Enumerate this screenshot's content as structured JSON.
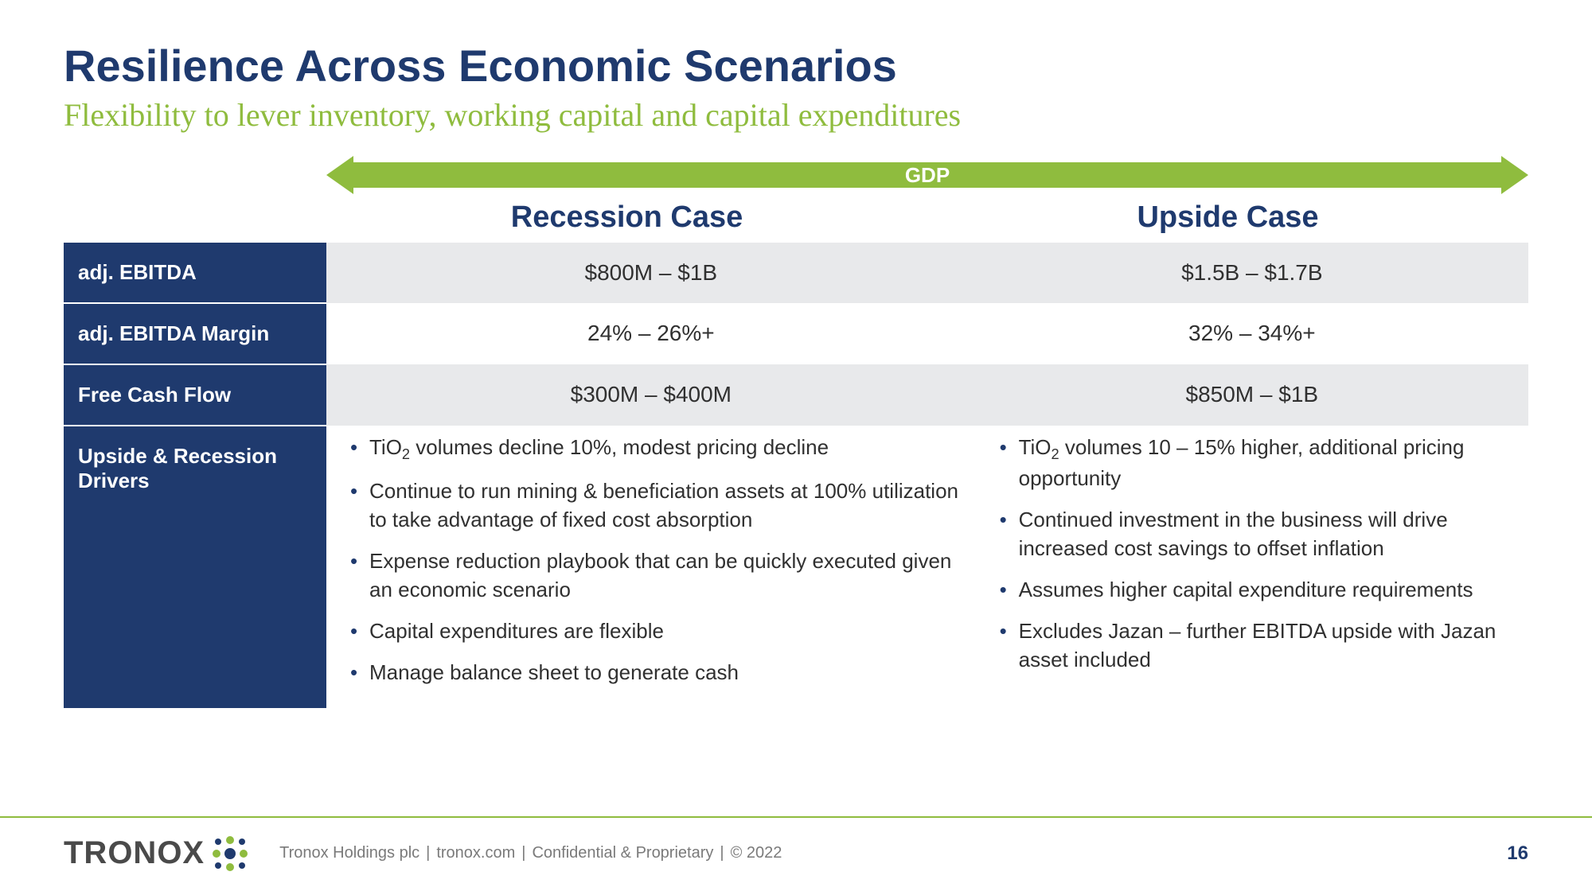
{
  "colors": {
    "title": "#1f3a6e",
    "accent_green": "#8fbc3e",
    "row_header_bg": "#1f3a6e",
    "row_header_text": "#ffffff",
    "shade_bg": "#e8e9eb",
    "body_text": "#303030",
    "footer_text": "#7a7a7a",
    "logo_text": "#4a4a4a"
  },
  "header": {
    "title": "Resilience Across Economic Scenarios",
    "subtitle": "Flexibility to lever inventory, working capital and capital expenditures"
  },
  "gdp_label": "GDP",
  "cases": {
    "left": "Recession Case",
    "right": "Upside Case"
  },
  "rows": [
    {
      "label": "adj. EBITDA",
      "left": "$800M – $1B",
      "right": "$1.5B – $1.7B",
      "shade": true
    },
    {
      "label": "adj. EBITDA Margin",
      "left": "24% – 26%+",
      "right": "32% – 34%+",
      "shade": false
    },
    {
      "label": "Free Cash Flow",
      "left": "$300M – $400M",
      "right": "$850M – $1B",
      "shade": true
    }
  ],
  "drivers": {
    "label": "Upside & Recession Drivers",
    "left": [
      "TiO₂ volumes decline 10%, modest pricing decline",
      "Continue to run mining & beneficiation assets at 100% utilization to take advantage of fixed cost absorption",
      "Expense reduction playbook that can be quickly executed given an economic scenario",
      "Capital expenditures are flexible",
      "Manage balance sheet to generate cash"
    ],
    "right": [
      "TiO₂ volumes 10 – 15% higher, additional pricing opportunity",
      "Continued investment in the business will drive increased cost savings to offset inflation",
      "Assumes higher capital expenditure requirements",
      "Excludes Jazan – further EBITDA upside with Jazan asset included"
    ]
  },
  "footer": {
    "logo_text": "TRONOX",
    "company": "Tronox Holdings plc",
    "site": "tronox.com",
    "conf": "Confidential & Proprietary",
    "year": "© 2022",
    "page": "16"
  }
}
